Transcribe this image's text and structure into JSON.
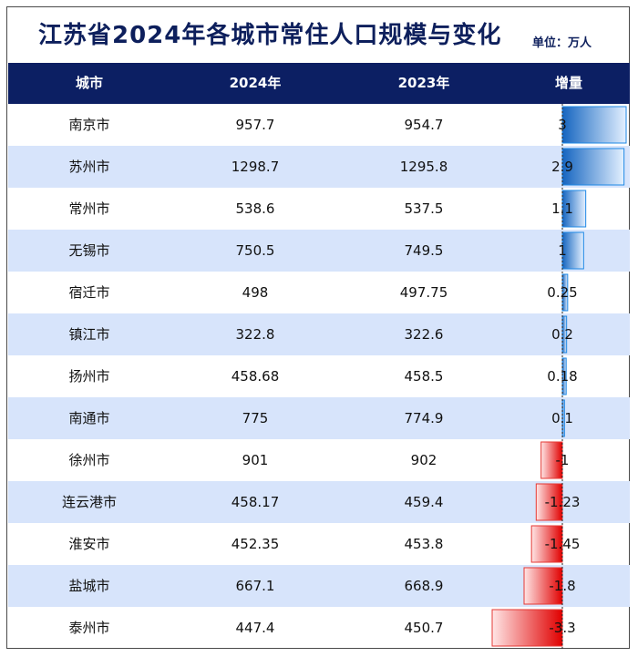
{
  "title": "江苏省2024年各城市常住人口规模与变化",
  "unit": "单位：万人",
  "columns": [
    "城市",
    "2024年",
    "2023年",
    "增量"
  ],
  "colors": {
    "header": "#0c1f63",
    "band": "#d7e4fb",
    "positive": "#1e88e5",
    "negative": "#e53935"
  },
  "chart_data": {
    "type": "table",
    "columns": [
      "城市",
      "2024年",
      "2023年",
      "增量"
    ],
    "rows": [
      {
        "city": "南京市",
        "y2024": "957.7",
        "y2023": "954.7",
        "delta": "3",
        "value": 3
      },
      {
        "city": "苏州市",
        "y2024": "1298.7",
        "y2023": "1295.8",
        "delta": "2.9",
        "value": 2.9
      },
      {
        "city": "常州市",
        "y2024": "538.6",
        "y2023": "537.5",
        "delta": "1.1",
        "value": 1.1
      },
      {
        "city": "无锡市",
        "y2024": "750.5",
        "y2023": "749.5",
        "delta": "1",
        "value": 1
      },
      {
        "city": "宿迁市",
        "y2024": "498",
        "y2023": "497.75",
        "delta": "0.25",
        "value": 0.25
      },
      {
        "city": "镇江市",
        "y2024": "322.8",
        "y2023": "322.6",
        "delta": "0.2",
        "value": 0.2
      },
      {
        "city": "扬州市",
        "y2024": "458.68",
        "y2023": "458.5",
        "delta": "0.18",
        "value": 0.18
      },
      {
        "city": "南通市",
        "y2024": "775",
        "y2023": "774.9",
        "delta": "0.1",
        "value": 0.1
      },
      {
        "city": "徐州市",
        "y2024": "901",
        "y2023": "902",
        "delta": "-1",
        "value": -1
      },
      {
        "city": "连云港市",
        "y2024": "458.17",
        "y2023": "459.4",
        "delta": "-1.23",
        "value": -1.23
      },
      {
        "city": "淮安市",
        "y2024": "452.35",
        "y2023": "453.8",
        "delta": "-1.45",
        "value": -1.45
      },
      {
        "city": "盐城市",
        "y2024": "667.1",
        "y2023": "668.9",
        "delta": "-1.8",
        "value": -1.8
      },
      {
        "city": "泰州市",
        "y2024": "447.4",
        "y2023": "450.7",
        "delta": "-3.3",
        "value": -3.3
      }
    ]
  }
}
